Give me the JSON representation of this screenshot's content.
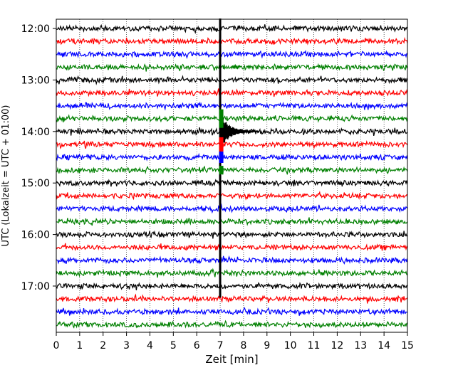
{
  "chart_data": {
    "type": "line",
    "title": "",
    "xlabel": "Zeit  [min]",
    "ylabel": "UTC (Lokalzeit = UTC + 01:00)",
    "xlim": [
      0,
      15
    ],
    "x_ticks": [
      0,
      1,
      2,
      3,
      4,
      5,
      6,
      7,
      8,
      9,
      10,
      11,
      12,
      13,
      14,
      15
    ],
    "x_tick_labels": [
      "0",
      "1",
      "2",
      "3",
      "4",
      "5",
      "6",
      "7",
      "8",
      "9",
      "10",
      "11",
      "12",
      "13",
      "14",
      "15"
    ],
    "y_tick_labels": [
      "12:00",
      "13:00",
      "14:00",
      "15:00",
      "16:00",
      "17:00"
    ],
    "grid": "vertical dotted",
    "trace_interval_min": 15,
    "trace_starts": [
      "12:00",
      "12:15",
      "12:30",
      "12:45",
      "13:00",
      "13:15",
      "13:30",
      "13:45",
      "14:00",
      "14:15",
      "14:30",
      "14:45",
      "15:00",
      "15:15",
      "15:30",
      "15:45",
      "16:00",
      "16:15",
      "16:30",
      "16:45",
      "17:00",
      "17:15",
      "17:30",
      "17:45"
    ],
    "trace_colors": [
      "#000000",
      "#ff0000",
      "#0000ff",
      "#008000"
    ],
    "event": {
      "x_min": 7,
      "visible_from_trace": "12:00",
      "visible_to_trace": "17:15",
      "strongest_trace": "14:00"
    }
  }
}
